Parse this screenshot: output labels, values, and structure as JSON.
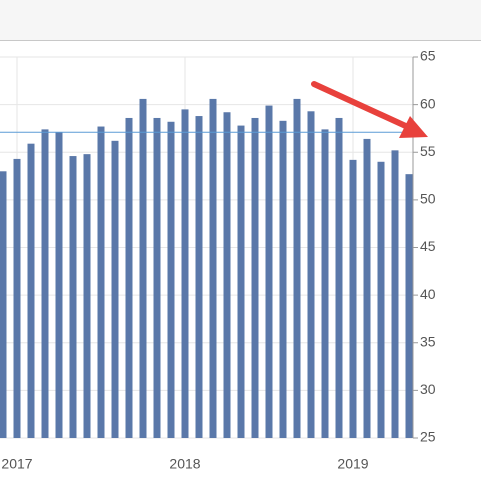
{
  "chart_data": {
    "type": "bar",
    "categories": [
      null,
      "2017",
      null,
      null,
      null,
      null,
      null,
      null,
      null,
      null,
      null,
      null,
      null,
      "2018",
      null,
      null,
      null,
      null,
      null,
      null,
      null,
      null,
      null,
      null,
      null,
      "2019",
      null,
      null,
      null,
      null
    ],
    "values": [
      53.0,
      54.3,
      55.9,
      57.4,
      57.1,
      54.6,
      54.8,
      57.7,
      56.2,
      58.6,
      60.6,
      58.6,
      58.2,
      59.5,
      58.8,
      60.6,
      59.2,
      57.8,
      58.6,
      59.9,
      58.3,
      60.6,
      59.3,
      57.4,
      58.6,
      54.2,
      56.4,
      54.0,
      55.2,
      52.7
    ],
    "color": "#5a78a9",
    "reference_line": 57.1,
    "reference_color": "#5b9bd5",
    "ylim": [
      25,
      65
    ],
    "yticks": [
      25,
      30,
      35,
      40,
      45,
      50,
      55,
      60,
      65
    ],
    "grid": true
  }
}
